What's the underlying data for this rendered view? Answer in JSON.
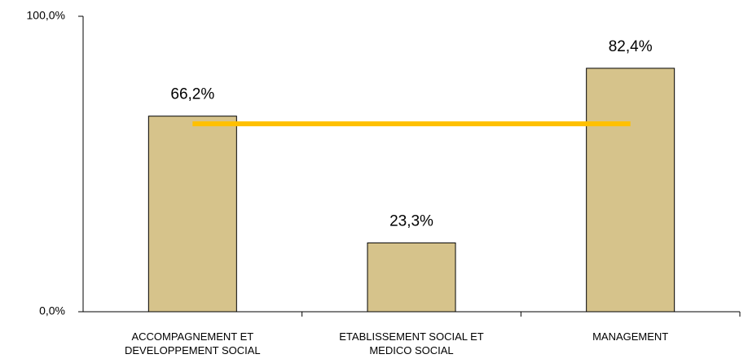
{
  "chart_data": {
    "type": "bar",
    "categories": [
      "ACCOMPAGNEMENT ET DEVELOPPEMENT SOCIAL",
      "ETABLISSEMENT SOCIAL ET MEDICO SOCIAL",
      "MANAGEMENT"
    ],
    "series": [
      {
        "type": "bar",
        "color": "#d6c38b",
        "values": [
          66.2,
          23.3,
          82.4
        ],
        "value_labels": [
          "66,2%",
          "23,3%",
          "82,4%"
        ]
      },
      {
        "type": "line",
        "color": "#ffc000",
        "values": [
          63.6,
          63.6,
          63.6
        ]
      }
    ],
    "ylim": [
      0,
      100
    ],
    "yticks": [
      {
        "value": 0,
        "label": "0,0%"
      },
      {
        "value": 100,
        "label": "100,0%"
      }
    ],
    "grid": false
  }
}
